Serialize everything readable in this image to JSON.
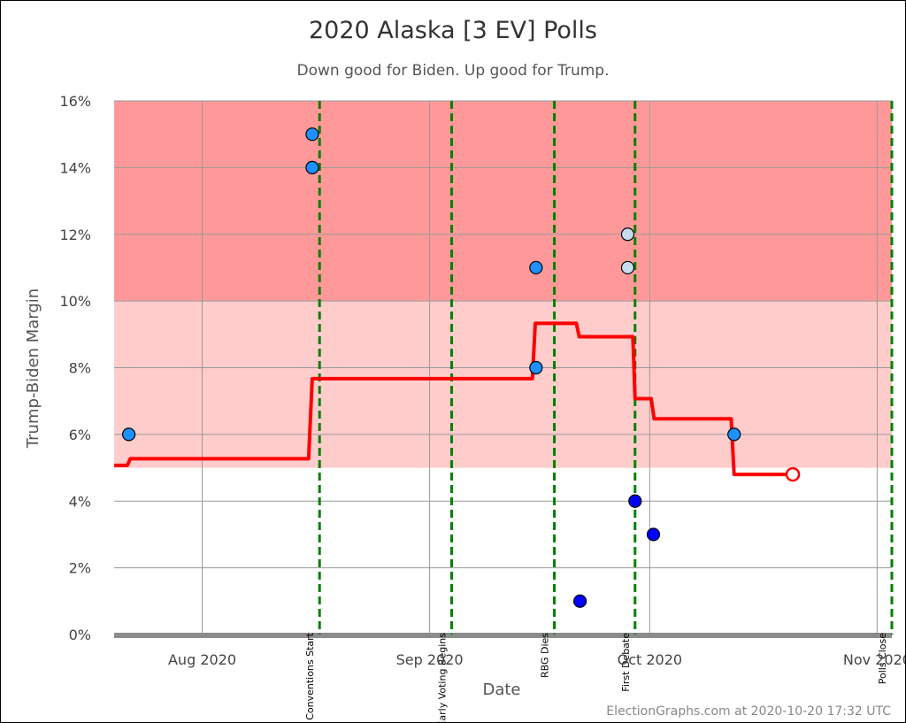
{
  "chart_data": {
    "type": "line",
    "title": "2020 Alaska [3 EV] Polls",
    "subtitle": "Down good for Biden. Up good for Trump.",
    "xlabel": "Date",
    "ylabel": "Trump-Biden Margin",
    "footer": "ElectionGraphs.com at 2020-10-20 17:32 UTC",
    "xlim": [
      "2020-07-20",
      "2020-11-03"
    ],
    "ylim": [
      0,
      16
    ],
    "x_ticks": [
      {
        "date": "2020-08-01",
        "label": "Aug 2020"
      },
      {
        "date": "2020-09-01",
        "label": "Sep 2020"
      },
      {
        "date": "2020-10-01",
        "label": "Oct 2020"
      },
      {
        "date": "2020-11-01",
        "label": "Nov 2020"
      }
    ],
    "y_ticks": [
      {
        "value": 0,
        "label": "0%"
      },
      {
        "value": 2,
        "label": "2%"
      },
      {
        "value": 4,
        "label": "4%"
      },
      {
        "value": 6,
        "label": "6%"
      },
      {
        "value": 8,
        "label": "8%"
      },
      {
        "value": 10,
        "label": "10%"
      },
      {
        "value": 12,
        "label": "12%"
      },
      {
        "value": 14,
        "label": "14%"
      },
      {
        "value": 16,
        "label": "16%"
      }
    ],
    "grid": true,
    "bands": [
      {
        "from": 10,
        "to": 16,
        "color": "#ff9999"
      },
      {
        "from": 5,
        "to": 10,
        "color": "#ffcccc"
      }
    ],
    "events": [
      {
        "date": "2020-08-17",
        "label": "Party Conventions Start"
      },
      {
        "date": "2020-09-04",
        "label": "Early Voting Begins"
      },
      {
        "date": "2020-09-18",
        "label": "RBG Dies"
      },
      {
        "date": "2020-09-29",
        "label": "First Debate"
      },
      {
        "date": "2020-11-03",
        "label": "Polls Close"
      }
    ],
    "average_line": {
      "color": "#ff0000",
      "points": [
        [
          "2020-07-20",
          5.07
        ],
        [
          "2020-07-21.8",
          5.07
        ],
        [
          "2020-07-22.2",
          5.27
        ],
        [
          "2020-08-15.5",
          5.27
        ],
        [
          "2020-08-16",
          7.67
        ],
        [
          "2020-09-15",
          7.67
        ],
        [
          "2020-09-15.4",
          9.33
        ],
        [
          "2020-09-21",
          9.33
        ],
        [
          "2020-09-21.4",
          8.93
        ],
        [
          "2020-09-28.7",
          8.93
        ],
        [
          "2020-09-29",
          7.07
        ],
        [
          "2020-10-01.2",
          7.07
        ],
        [
          "2020-10-01.6",
          6.47
        ],
        [
          "2020-10-12.1",
          6.47
        ],
        [
          "2020-10-12.5",
          4.8
        ],
        [
          "2020-10-20.5",
          4.8
        ]
      ],
      "endpoint": [
        "2020-10-20.5",
        4.8
      ]
    },
    "polls": [
      {
        "date": "2020-07-22",
        "value": 6,
        "color": "#1e90ff"
      },
      {
        "date": "2020-08-16",
        "value": 15,
        "color": "#1e90ff"
      },
      {
        "date": "2020-08-16",
        "value": 14,
        "color": "#1e90ff"
      },
      {
        "date": "2020-09-15.5",
        "value": 11,
        "color": "#1e90ff"
      },
      {
        "date": "2020-09-15.5",
        "value": 8,
        "color": "#1e90ff"
      },
      {
        "date": "2020-09-21.5",
        "value": 1,
        "color": "#0000ff"
      },
      {
        "date": "2020-09-28",
        "value": 12,
        "color": "#c8dcf0"
      },
      {
        "date": "2020-09-28",
        "value": 11,
        "color": "#c8dcf0"
      },
      {
        "date": "2020-09-29",
        "value": 4,
        "color": "#0000ff"
      },
      {
        "date": "2020-10-01.5",
        "value": 3,
        "color": "#0000ff"
      },
      {
        "date": "2020-10-12.5",
        "value": 6,
        "color": "#1e90ff"
      }
    ]
  }
}
